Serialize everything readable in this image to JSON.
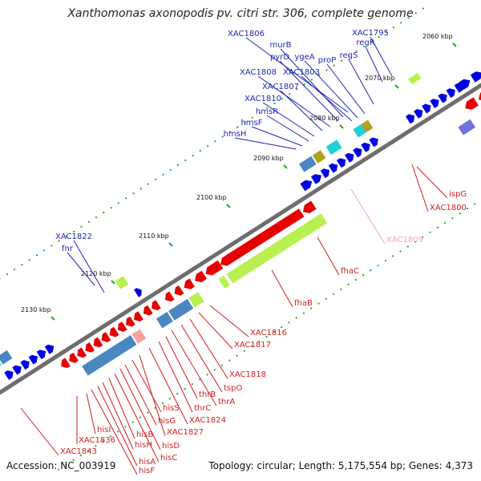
{
  "title": "Xanthomonas axonopodis pv. citri str. 306, complete genome",
  "footer": {
    "accession": "Accession: NC_003919",
    "topology": "Topology: circular; Length: 5,175,554 bp; Genes: 4,373"
  },
  "colors": {
    "backbone": "#6e6e6e",
    "forward_gene": "#0000e6",
    "reverse_gene": "#e60000",
    "forward_label": "#1e28b4",
    "reverse_label": "#d21e1e",
    "pink_label": "#f4a0c8",
    "tick": "#22aa22",
    "cyan": "#20d0d8",
    "steelblue": "#4a86c0",
    "olive": "#b0a020",
    "lightgreen": "#b8f050",
    "lightred": "#f8a0a0",
    "purple": "#7070e0",
    "grey": "#b8b8b8"
  },
  "ticks": [
    "2060 kbp",
    "2070 kbp",
    "2080 kbp",
    "2090 kbp",
    "2100 kbp",
    "2110 kbp",
    "2120 kbp",
    "2130 kbp"
  ],
  "forward_labels": [
    "XAC1795",
    "regR",
    "XAC1806",
    "murB",
    "pyrD",
    "ygeA",
    "proP",
    "regS",
    "XAC1808",
    "XAC1803",
    "XAC1807",
    "XAC1810",
    "hmsR",
    "hmsF",
    "hmsH",
    "XAC1822",
    "fnr"
  ],
  "reverse_labels": [
    "ispG",
    "XAC1800",
    "fhaC",
    "fhaB",
    "XAC1816",
    "XAC1817",
    "XAC1818",
    "tspO",
    "thrA",
    "thrB",
    "thrC",
    "XAC1824",
    "XAC1827",
    "hisS",
    "hisG",
    "hisD",
    "hisC",
    "hisB",
    "hisH",
    "hisA",
    "hisF",
    "hisI",
    "XAC1836",
    "XAC1843"
  ],
  "pink_labels": [
    "XAC1809"
  ]
}
